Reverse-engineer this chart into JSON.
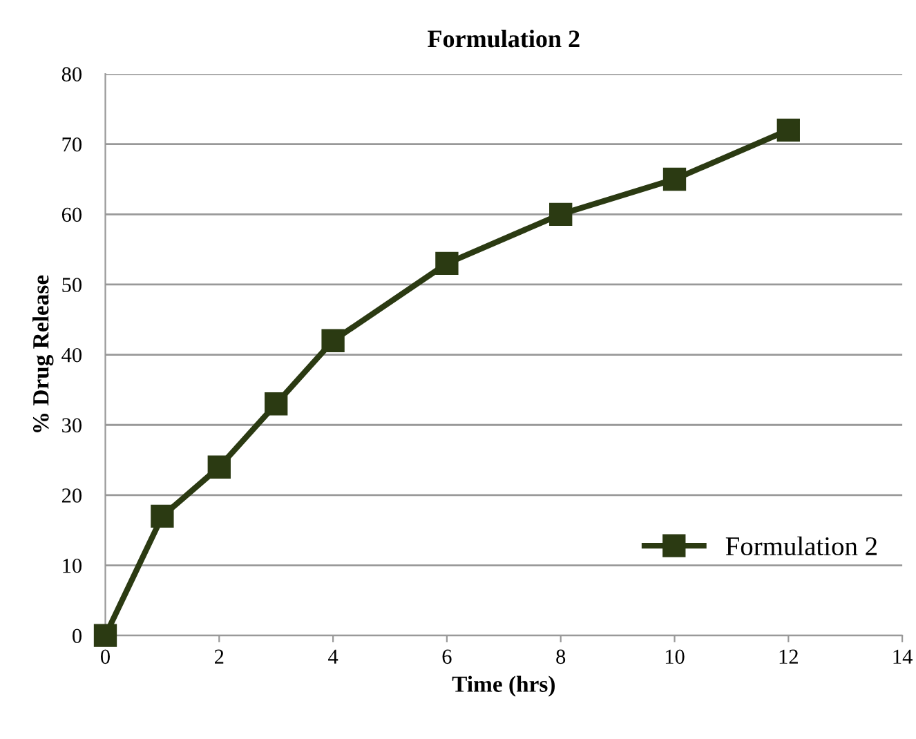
{
  "chart_data": {
    "type": "line",
    "title": "Formulation 2",
    "xlabel": "Time (hrs)",
    "ylabel": "% Drug Release",
    "x": [
      0,
      1,
      2,
      3,
      4,
      6,
      8,
      10,
      12
    ],
    "series": [
      {
        "name": "Formulation 2",
        "color": "#2b3a12",
        "values": [
          0,
          17,
          24,
          33,
          42,
          53,
          60,
          65,
          72
        ]
      }
    ],
    "xlim": [
      0,
      14
    ],
    "xticks": [
      0,
      2,
      4,
      6,
      8,
      10,
      12,
      14
    ],
    "ylim": [
      0,
      80
    ],
    "yticks": [
      0,
      10,
      20,
      30,
      40,
      50,
      60,
      70,
      80
    ],
    "grid": "y",
    "legend": "bottom right",
    "marker": "square",
    "line_style": "solid"
  }
}
